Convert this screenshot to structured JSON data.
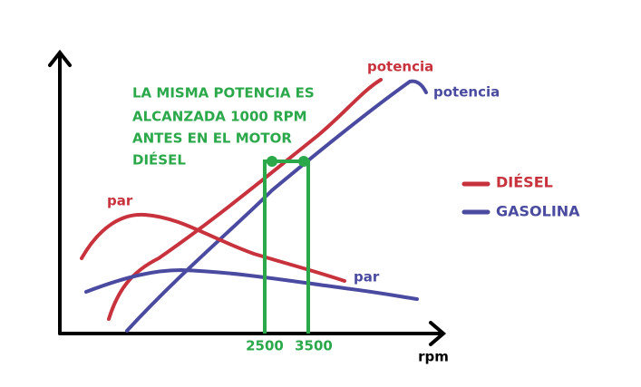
{
  "annotation": [
    "LA MISMA POTENCIA ES",
    "ALCANZADA 1000 RPM",
    "ANTES EN EL MOTOR",
    "DIÉSEL"
  ],
  "curve_labels": {
    "diesel_power": "potencia",
    "petrol_power": "potencia",
    "diesel_torque": "par",
    "petrol_torque": "par"
  },
  "legend": [
    "DIÉSEL",
    "GASOLINA"
  ],
  "x_labels": [
    "2500",
    "3500"
  ],
  "x_axis_label": "rpm"
}
